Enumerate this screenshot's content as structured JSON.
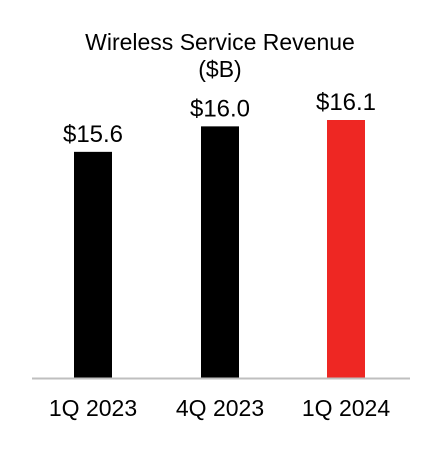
{
  "chart_data": {
    "type": "bar",
    "title": "Wireless Service Revenue",
    "subtitle": "($B)",
    "xlabel": "",
    "ylabel": "",
    "categories": [
      "1Q 2023",
      "4Q 2023",
      "1Q 2024"
    ],
    "values": [
      15.6,
      16.0,
      16.1
    ],
    "data_labels": [
      "$15.6",
      "$16.0",
      "$16.1"
    ],
    "bar_colors": [
      "#000000",
      "#000000",
      "#ee2723"
    ],
    "ylim": [
      0,
      16.1
    ],
    "grid": false,
    "legend": "none"
  }
}
